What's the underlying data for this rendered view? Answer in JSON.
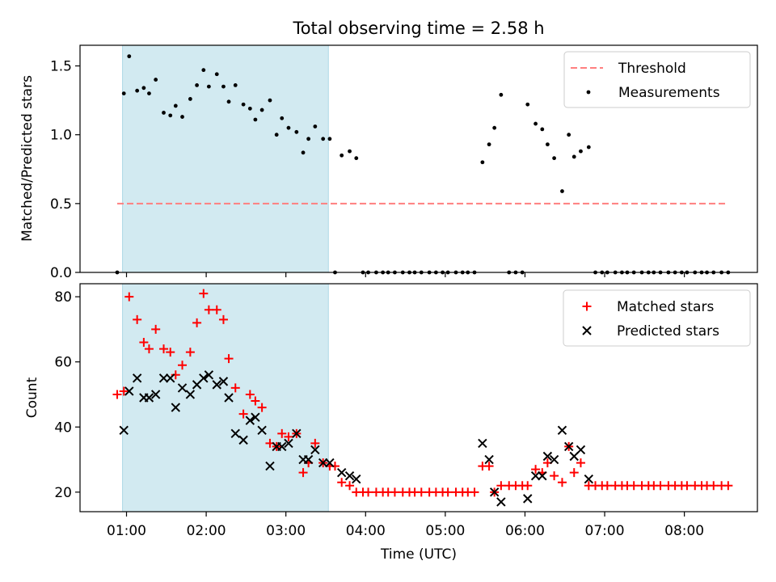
{
  "chart_data": [
    {
      "type": "scatter",
      "title": "Total observing time = 2.58 h",
      "xlabel": "",
      "ylabel": "Matched/Predicted stars",
      "xlim": [
        "00:25",
        "08:55"
      ],
      "ylim": [
        0,
        1.65
      ],
      "yticks": [
        0.0,
        0.5,
        1.0,
        1.5
      ],
      "ytick_labels": [
        "0.0",
        "0.5",
        "1.0",
        "1.5"
      ],
      "shaded_interval": [
        "00:57",
        "03:32"
      ],
      "shade_color": "#add8e6",
      "legend": {
        "position": "top-right",
        "entries": [
          "Threshold",
          "Measurements"
        ]
      },
      "series": [
        {
          "name": "Threshold",
          "kind": "dashed-line",
          "color": "#ff7f7f",
          "x": [
            "00:53",
            "08:33"
          ],
          "y": [
            0.5,
            0.5
          ]
        },
        {
          "name": "Measurements",
          "kind": "points",
          "color": "#000000",
          "x": [
            "00:53",
            "00:58",
            "01:02",
            "01:08",
            "01:13",
            "01:17",
            "01:22",
            "01:28",
            "01:33",
            "01:37",
            "01:42",
            "01:48",
            "01:53",
            "01:58",
            "02:02",
            "02:08",
            "02:13",
            "02:17",
            "02:22",
            "02:28",
            "02:33",
            "02:37",
            "02:42",
            "02:48",
            "02:53",
            "02:57",
            "03:02",
            "03:08",
            "03:13",
            "03:17",
            "03:22",
            "03:28",
            "03:33",
            "03:37",
            "03:42",
            "03:48",
            "03:53",
            "03:58",
            "04:02",
            "04:08",
            "04:13",
            "04:17",
            "04:22",
            "04:28",
            "04:33",
            "04:37",
            "04:42",
            "04:48",
            "04:53",
            "04:58",
            "05:02",
            "05:08",
            "05:13",
            "05:17",
            "05:22",
            "05:28",
            "05:33",
            "05:37",
            "05:42",
            "05:48",
            "05:53",
            "05:58",
            "06:02",
            "06:08",
            "06:13",
            "06:17",
            "06:22",
            "06:28",
            "06:33",
            "06:37",
            "06:42",
            "06:48",
            "06:53",
            "06:58",
            "07:02",
            "07:08",
            "07:13",
            "07:17",
            "07:22",
            "07:28",
            "07:33",
            "07:37",
            "07:42",
            "07:48",
            "07:53",
            "07:58",
            "08:02",
            "08:08",
            "08:13",
            "08:17",
            "08:22",
            "08:28",
            "08:33"
          ],
          "y": [
            0,
            1.3,
            1.57,
            1.32,
            1.34,
            1.3,
            1.4,
            1.16,
            1.14,
            1.21,
            1.13,
            1.26,
            1.36,
            1.47,
            1.35,
            1.44,
            1.35,
            1.24,
            1.36,
            1.22,
            1.19,
            1.11,
            1.18,
            1.25,
            1.0,
            1.12,
            1.05,
            1.02,
            0.87,
            0.97,
            1.06,
            0.97,
            0.97,
            0,
            0.85,
            0.88,
            0.83,
            0,
            0,
            0,
            0,
            0,
            0,
            0,
            0,
            0,
            0,
            0,
            0,
            0,
            0,
            0,
            0,
            0,
            0,
            0.8,
            0.93,
            1.05,
            1.29,
            0,
            0,
            0,
            1.22,
            1.08,
            1.04,
            0.93,
            0.83,
            0.59,
            1.0,
            0.84,
            0.88,
            0.91,
            0,
            0,
            0,
            0,
            0,
            0,
            0,
            0,
            0,
            0,
            0,
            0,
            0,
            0,
            0,
            0,
            0,
            0,
            0,
            0,
            0
          ]
        }
      ]
    },
    {
      "type": "scatter",
      "title": "",
      "xlabel": "Time (UTC)",
      "ylabel": "Count",
      "xlim": [
        "00:25",
        "08:55"
      ],
      "ylim": [
        14,
        84
      ],
      "xticks": [
        "01:00",
        "02:00",
        "03:00",
        "04:00",
        "05:00",
        "06:00",
        "07:00",
        "08:00"
      ],
      "yticks": [
        20,
        40,
        60,
        80
      ],
      "ytick_labels": [
        "20",
        "40",
        "60",
        "80"
      ],
      "shaded_interval": [
        "00:57",
        "03:32"
      ],
      "shade_color": "#add8e6",
      "legend": {
        "position": "top-right",
        "entries": [
          "Matched stars",
          "Predicted stars"
        ]
      },
      "series": [
        {
          "name": "Matched stars",
          "marker": "+",
          "color": "#ff0000",
          "x": [
            "00:53",
            "00:58",
            "01:02",
            "01:08",
            "01:13",
            "01:17",
            "01:22",
            "01:28",
            "01:33",
            "01:37",
            "01:42",
            "01:48",
            "01:53",
            "01:58",
            "02:02",
            "02:08",
            "02:13",
            "02:17",
            "02:22",
            "02:28",
            "02:33",
            "02:37",
            "02:42",
            "02:48",
            "02:53",
            "02:57",
            "03:02",
            "03:08",
            "03:13",
            "03:17",
            "03:22",
            "03:28",
            "03:33",
            "03:37",
            "03:42",
            "03:48",
            "03:53",
            "03:58",
            "04:02",
            "04:08",
            "04:13",
            "04:17",
            "04:22",
            "04:28",
            "04:33",
            "04:37",
            "04:42",
            "04:48",
            "04:53",
            "04:58",
            "05:02",
            "05:08",
            "05:13",
            "05:17",
            "05:22",
            "05:28",
            "05:33",
            "05:37",
            "05:42",
            "05:48",
            "05:53",
            "05:58",
            "06:02",
            "06:08",
            "06:13",
            "06:17",
            "06:22",
            "06:28",
            "06:33",
            "06:37",
            "06:42",
            "06:48",
            "06:53",
            "06:58",
            "07:02",
            "07:08",
            "07:13",
            "07:17",
            "07:22",
            "07:28",
            "07:33",
            "07:37",
            "07:42",
            "07:48",
            "07:53",
            "07:58",
            "08:02",
            "08:08",
            "08:13",
            "08:17",
            "08:22",
            "08:28",
            "08:33"
          ],
          "y": [
            50,
            51,
            80,
            73,
            66,
            64,
            70,
            64,
            63,
            56,
            59,
            63,
            72,
            81,
            76,
            76,
            73,
            61,
            52,
            44,
            50,
            48,
            46,
            35,
            34,
            38,
            37,
            38,
            26,
            29,
            35,
            29,
            28,
            28,
            23,
            22,
            20,
            20,
            20,
            20,
            20,
            20,
            20,
            20,
            20,
            20,
            20,
            20,
            20,
            20,
            20,
            20,
            20,
            20,
            20,
            28,
            28,
            20,
            22,
            22,
            22,
            22,
            22,
            27,
            26,
            29,
            25,
            23,
            34,
            26,
            29,
            22,
            22,
            22,
            22,
            22,
            22,
            22,
            22,
            22,
            22,
            22,
            22,
            22,
            22,
            22,
            22,
            22,
            22,
            22,
            22,
            22,
            22
          ]
        },
        {
          "name": "Predicted stars",
          "marker": "x",
          "color": "#000000",
          "x": [
            "00:58",
            "01:02",
            "01:08",
            "01:13",
            "01:17",
            "01:22",
            "01:28",
            "01:33",
            "01:37",
            "01:42",
            "01:48",
            "01:53",
            "01:58",
            "02:02",
            "02:08",
            "02:13",
            "02:17",
            "02:22",
            "02:28",
            "02:33",
            "02:37",
            "02:42",
            "02:48",
            "02:53",
            "02:57",
            "03:02",
            "03:08",
            "03:13",
            "03:17",
            "03:22",
            "03:28",
            "03:33",
            "03:42",
            "03:48",
            "03:53",
            "05:28",
            "05:33",
            "05:37",
            "05:42",
            "06:02",
            "06:08",
            "06:13",
            "06:17",
            "06:22",
            "06:28",
            "06:33",
            "06:37",
            "06:42",
            "06:48"
          ],
          "y": [
            39,
            51,
            55,
            49,
            49,
            50,
            55,
            55,
            46,
            52,
            50,
            53,
            55,
            56,
            53,
            54,
            49,
            38,
            36,
            42,
            43,
            39,
            28,
            34,
            34,
            35,
            38,
            30,
            30,
            33,
            29,
            29,
            26,
            25,
            24,
            35,
            30,
            20,
            17,
            18,
            25,
            25,
            31,
            30,
            39,
            34,
            31,
            33,
            24
          ]
        }
      ]
    }
  ]
}
